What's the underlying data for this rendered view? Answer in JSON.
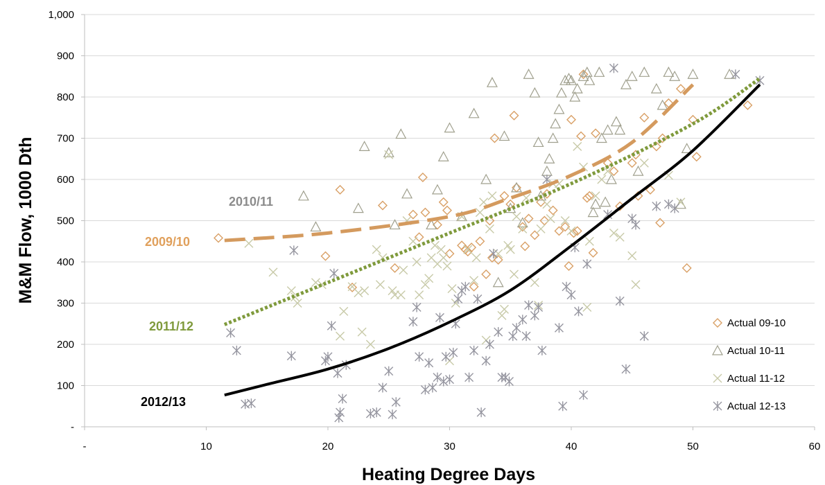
{
  "chart_data": {
    "type": "scatter",
    "xlabel": "Heating Degree Days",
    "ylabel": "M&M Flow, 1000 Dth",
    "xlim": [
      0,
      60
    ],
    "ylim": [
      0,
      1000
    ],
    "x_ticks": [
      0,
      10,
      20,
      30,
      40,
      50,
      60
    ],
    "x_tick_labels": [
      "-",
      "10",
      "20",
      "30",
      "40",
      "50",
      "60"
    ],
    "y_ticks": [
      0,
      100,
      200,
      300,
      400,
      500,
      600,
      700,
      800,
      900,
      1000
    ],
    "y_tick_labels": [
      "-",
      "100",
      "200",
      "300",
      "400",
      "500",
      "600",
      "700",
      "800",
      "900",
      "1,000"
    ],
    "grid": "horizontal",
    "legend_position": "bottom-right",
    "trend_lines": [
      {
        "name": "2012/13",
        "color": "#000000",
        "style": "solid",
        "label_color": "#000000",
        "x": [
          11.5,
          15,
          20,
          25,
          30,
          35,
          40,
          45,
          50,
          55.5
        ],
        "y": [
          77,
          103,
          140,
          190,
          254,
          331,
          439,
          554,
          670,
          830
        ]
      },
      {
        "name": "2011/12",
        "color": "#7f9a3c",
        "style": "dotted",
        "label_color": "#7f9a3c",
        "x": [
          11.5,
          20,
          30,
          40,
          50,
          55.5
        ],
        "y": [
          248,
          350,
          470,
          590,
          735,
          845
        ]
      },
      {
        "name": "2009/10",
        "color": "#d49a5e",
        "style": "dashed",
        "label_color": "#e0a05c",
        "x": [
          11.5,
          20,
          30,
          35,
          40,
          45,
          50
        ],
        "y": [
          452,
          470,
          510,
          555,
          610,
          690,
          830
        ]
      }
    ],
    "floating_labels": [
      {
        "text": "2010/11",
        "color": "#8c8c8c"
      }
    ],
    "series": [
      {
        "name": "Actual 09-10",
        "marker": "diamond",
        "color": "#d9a066",
        "points": [
          [
            11,
            458
          ],
          [
            19.8,
            414
          ],
          [
            21,
            575
          ],
          [
            22,
            338
          ],
          [
            24.5,
            537
          ],
          [
            25.5,
            385
          ],
          [
            27,
            515
          ],
          [
            27.5,
            460
          ],
          [
            27.8,
            605
          ],
          [
            28,
            520
          ],
          [
            29,
            490
          ],
          [
            29.5,
            545
          ],
          [
            29.8,
            525
          ],
          [
            30,
            420
          ],
          [
            31,
            440
          ],
          [
            31.3,
            430
          ],
          [
            31.5,
            425
          ],
          [
            31.8,
            435
          ],
          [
            32,
            340
          ],
          [
            32.5,
            450
          ],
          [
            33,
            370
          ],
          [
            33.3,
            500
          ],
          [
            33.5,
            410
          ],
          [
            33.7,
            700
          ],
          [
            34,
            405
          ],
          [
            34.5,
            560
          ],
          [
            35,
            540
          ],
          [
            35.3,
            755
          ],
          [
            35.5,
            580
          ],
          [
            36,
            485
          ],
          [
            36.2,
            438
          ],
          [
            36.5,
            505
          ],
          [
            37,
            465
          ],
          [
            37.5,
            545
          ],
          [
            37.8,
            500
          ],
          [
            38,
            565
          ],
          [
            38.5,
            525
          ],
          [
            39,
            475
          ],
          [
            39.5,
            485
          ],
          [
            39.8,
            390
          ],
          [
            40,
            745
          ],
          [
            40.2,
            470
          ],
          [
            40.5,
            475
          ],
          [
            40.8,
            705
          ],
          [
            41,
            855
          ],
          [
            41.3,
            555
          ],
          [
            41.5,
            560
          ],
          [
            41.8,
            422
          ],
          [
            42,
            712
          ],
          [
            43,
            640
          ],
          [
            43.5,
            620
          ],
          [
            44,
            535
          ],
          [
            45,
            640
          ],
          [
            45.3,
            660
          ],
          [
            45.5,
            560
          ],
          [
            46,
            750
          ],
          [
            46.5,
            575
          ],
          [
            47,
            680
          ],
          [
            47.3,
            495
          ],
          [
            47.5,
            700
          ],
          [
            48,
            785
          ],
          [
            49,
            820
          ],
          [
            49.5,
            385
          ],
          [
            50,
            745
          ],
          [
            50.3,
            655
          ],
          [
            54.5,
            780
          ]
        ]
      },
      {
        "name": "Actual 10-11",
        "marker": "triangle",
        "color": "#a0a08e",
        "points": [
          [
            18,
            560
          ],
          [
            19,
            485
          ],
          [
            22.5,
            530
          ],
          [
            23,
            680
          ],
          [
            25,
            665
          ],
          [
            25.5,
            490
          ],
          [
            26,
            710
          ],
          [
            26.5,
            565
          ],
          [
            28.5,
            490
          ],
          [
            29,
            575
          ],
          [
            29.5,
            655
          ],
          [
            30,
            725
          ],
          [
            31,
            510
          ],
          [
            32,
            760
          ],
          [
            33,
            600
          ],
          [
            33.5,
            835
          ],
          [
            34,
            350
          ],
          [
            34.5,
            705
          ],
          [
            35,
            530
          ],
          [
            35.5,
            580
          ],
          [
            36,
            495
          ],
          [
            36.5,
            855
          ],
          [
            37,
            810
          ],
          [
            37.3,
            690
          ],
          [
            37.5,
            560
          ],
          [
            38,
            620
          ],
          [
            38.2,
            650
          ],
          [
            38.5,
            700
          ],
          [
            38.7,
            735
          ],
          [
            39,
            770
          ],
          [
            39.2,
            810
          ],
          [
            39.5,
            840
          ],
          [
            39.8,
            845
          ],
          [
            40,
            840
          ],
          [
            40.3,
            800
          ],
          [
            40.5,
            820
          ],
          [
            41,
            850
          ],
          [
            41.3,
            860
          ],
          [
            41.5,
            840
          ],
          [
            41.8,
            520
          ],
          [
            42,
            540
          ],
          [
            42.3,
            860
          ],
          [
            42.5,
            700
          ],
          [
            42.8,
            545
          ],
          [
            43,
            720
          ],
          [
            43.3,
            600
          ],
          [
            43.7,
            740
          ],
          [
            44,
            720
          ],
          [
            44.5,
            830
          ],
          [
            45,
            850
          ],
          [
            45.5,
            620
          ],
          [
            46,
            860
          ],
          [
            47,
            820
          ],
          [
            47.5,
            780
          ],
          [
            48,
            860
          ],
          [
            48.5,
            850
          ],
          [
            49,
            540
          ],
          [
            49.5,
            675
          ],
          [
            50,
            855
          ],
          [
            53,
            855
          ]
        ]
      },
      {
        "name": "Actual 11-12",
        "marker": "x",
        "color": "#c8caa8",
        "points": [
          [
            13.5,
            445
          ],
          [
            15.5,
            375
          ],
          [
            17,
            330
          ],
          [
            17.3,
            315
          ],
          [
            17.5,
            300
          ],
          [
            19,
            350
          ],
          [
            19.5,
            345
          ],
          [
            21,
            220
          ],
          [
            21.3,
            280
          ],
          [
            22,
            340
          ],
          [
            22.5,
            325
          ],
          [
            22.8,
            230
          ],
          [
            23,
            330
          ],
          [
            23.5,
            200
          ],
          [
            24,
            430
          ],
          [
            24.3,
            345
          ],
          [
            24.5,
            410
          ],
          [
            25,
            660
          ],
          [
            25.3,
            330
          ],
          [
            25.5,
            320
          ],
          [
            26,
            320
          ],
          [
            26.2,
            380
          ],
          [
            26.5,
            500
          ],
          [
            27,
            450
          ],
          [
            27.3,
            400
          ],
          [
            27.5,
            320
          ],
          [
            28,
            345
          ],
          [
            28.3,
            360
          ],
          [
            28.5,
            410
          ],
          [
            28.8,
            440
          ],
          [
            29,
            395
          ],
          [
            29.3,
            430
          ],
          [
            29.5,
            410
          ],
          [
            29.8,
            390
          ],
          [
            30,
            160
          ],
          [
            30.2,
            335
          ],
          [
            30.5,
            300
          ],
          [
            31,
            510
          ],
          [
            31.5,
            430
          ],
          [
            32,
            355
          ],
          [
            32.2,
            410
          ],
          [
            32.5,
            520
          ],
          [
            32.8,
            545
          ],
          [
            33,
            210
          ],
          [
            33.3,
            480
          ],
          [
            33.5,
            560
          ],
          [
            34,
            420
          ],
          [
            34.3,
            270
          ],
          [
            34.5,
            285
          ],
          [
            34.8,
            440
          ],
          [
            35,
            430
          ],
          [
            35.3,
            370
          ],
          [
            35.5,
            510
          ],
          [
            36,
            480
          ],
          [
            36.3,
            555
          ],
          [
            37,
            350
          ],
          [
            37.3,
            295
          ],
          [
            37.5,
            480
          ],
          [
            38,
            540
          ],
          [
            38.3,
            505
          ],
          [
            38.5,
            590
          ],
          [
            39,
            590
          ],
          [
            39.5,
            500
          ],
          [
            40,
            475
          ],
          [
            40.5,
            680
          ],
          [
            41,
            630
          ],
          [
            41.3,
            290
          ],
          [
            41.5,
            450
          ],
          [
            42,
            560
          ],
          [
            42.5,
            600
          ],
          [
            43,
            620
          ],
          [
            43.5,
            470
          ],
          [
            44,
            460
          ],
          [
            45,
            415
          ],
          [
            45.3,
            345
          ],
          [
            46,
            640
          ],
          [
            48,
            610
          ],
          [
            49,
            545
          ]
        ]
      },
      {
        "name": "Actual 12-13",
        "marker": "asterisk",
        "color": "#9696a0",
        "points": [
          [
            12,
            228
          ],
          [
            12.5,
            185
          ],
          [
            13.2,
            55
          ],
          [
            13.7,
            57
          ],
          [
            17,
            172
          ],
          [
            17.2,
            428
          ],
          [
            19.8,
            160
          ],
          [
            20,
            170
          ],
          [
            20.3,
            245
          ],
          [
            20.5,
            372
          ],
          [
            20.8,
            130
          ],
          [
            20.9,
            22
          ],
          [
            21,
            35
          ],
          [
            21.2,
            68
          ],
          [
            21.5,
            150
          ],
          [
            23.5,
            32
          ],
          [
            24,
            35
          ],
          [
            24.5,
            95
          ],
          [
            25,
            135
          ],
          [
            25.3,
            30
          ],
          [
            25.6,
            60
          ],
          [
            27,
            255
          ],
          [
            27.3,
            290
          ],
          [
            27.5,
            170
          ],
          [
            28,
            90
          ],
          [
            28.3,
            155
          ],
          [
            28.6,
            95
          ],
          [
            29,
            120
          ],
          [
            29.2,
            265
          ],
          [
            29.5,
            110
          ],
          [
            29.7,
            170
          ],
          [
            30,
            115
          ],
          [
            30.3,
            180
          ],
          [
            30.5,
            250
          ],
          [
            30.7,
            310
          ],
          [
            31,
            330
          ],
          [
            31.3,
            340
          ],
          [
            31.6,
            120
          ],
          [
            32,
            185
          ],
          [
            32.3,
            310
          ],
          [
            32.6,
            35
          ],
          [
            33,
            160
          ],
          [
            33.3,
            200
          ],
          [
            33.6,
            420
          ],
          [
            34,
            230
          ],
          [
            34.3,
            120
          ],
          [
            34.6,
            120
          ],
          [
            34.9,
            110
          ],
          [
            35.2,
            220
          ],
          [
            35.5,
            240
          ],
          [
            36,
            260
          ],
          [
            36.3,
            220
          ],
          [
            36.5,
            295
          ],
          [
            37,
            270
          ],
          [
            37.3,
            290
          ],
          [
            37.6,
            185
          ],
          [
            38,
            600
          ],
          [
            39,
            240
          ],
          [
            39.3,
            50
          ],
          [
            39.6,
            340
          ],
          [
            40,
            320
          ],
          [
            40.3,
            435
          ],
          [
            40.6,
            280
          ],
          [
            41,
            77
          ],
          [
            41.3,
            395
          ],
          [
            43,
            515
          ],
          [
            43.5,
            870
          ],
          [
            44,
            305
          ],
          [
            44.5,
            140
          ],
          [
            45,
            505
          ],
          [
            45.3,
            490
          ],
          [
            46,
            220
          ],
          [
            47,
            535
          ],
          [
            48,
            540
          ],
          [
            48.5,
            530
          ],
          [
            53.5,
            855
          ],
          [
            55.5,
            840
          ]
        ]
      }
    ]
  }
}
